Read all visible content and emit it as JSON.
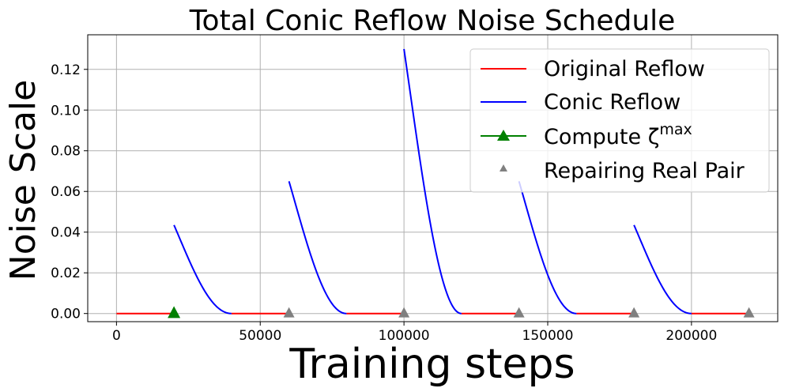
{
  "chart_data": {
    "type": "line",
    "title": "Total Conic Reflow Noise Schedule",
    "xlabel": "Training steps",
    "ylabel": "Noise Scale",
    "xlim": [
      -10000,
      230000
    ],
    "ylim": [
      -0.004,
      0.137
    ],
    "xticks": [
      0,
      50000,
      100000,
      150000,
      200000
    ],
    "xtick_labels": [
      "0",
      "50000",
      "100000",
      "150000",
      "200000"
    ],
    "yticks": [
      0.0,
      0.02,
      0.04,
      0.06,
      0.08,
      0.1,
      0.12
    ],
    "ytick_labels": [
      "0.00",
      "0.02",
      "0.04",
      "0.06",
      "0.08",
      "0.10",
      "0.12"
    ],
    "grid": true,
    "legend_position": "top-right",
    "colors": {
      "original": "#ff0000",
      "conic": "#0000ff",
      "compute": "#008000",
      "repairing": "#808080"
    },
    "series": [
      {
        "name": "Original Reflow",
        "style": "line",
        "segments": [
          [
            0,
            20000
          ],
          [
            40000,
            60000
          ],
          [
            80000,
            100000
          ],
          [
            120000,
            140000
          ],
          [
            160000,
            180000
          ],
          [
            200000,
            220000
          ]
        ],
        "y": 0
      },
      {
        "name": "Conic Reflow",
        "style": "line",
        "segments": [
          {
            "x_start": 20000,
            "x_end": 40000,
            "peak": 0.0435
          },
          {
            "x_start": 60000,
            "x_end": 80000,
            "peak": 0.065
          },
          {
            "x_start": 100000,
            "x_end": 120000,
            "peak": 0.13
          },
          {
            "x_start": 140000,
            "x_end": 160000,
            "peak": 0.065
          },
          {
            "x_start": 180000,
            "x_end": 200000,
            "peak": 0.0435
          }
        ]
      },
      {
        "name": "Compute ζ",
        "name_sup": "max",
        "style": "marker",
        "marker": "triangle",
        "points": [
          [
            20000,
            0
          ]
        ]
      },
      {
        "name": "Repairing Real Pair",
        "style": "marker",
        "marker": "triangle",
        "points": [
          [
            60000,
            0
          ],
          [
            100000,
            0
          ],
          [
            140000,
            0
          ],
          [
            180000,
            0
          ],
          [
            220000,
            0
          ]
        ]
      }
    ]
  }
}
